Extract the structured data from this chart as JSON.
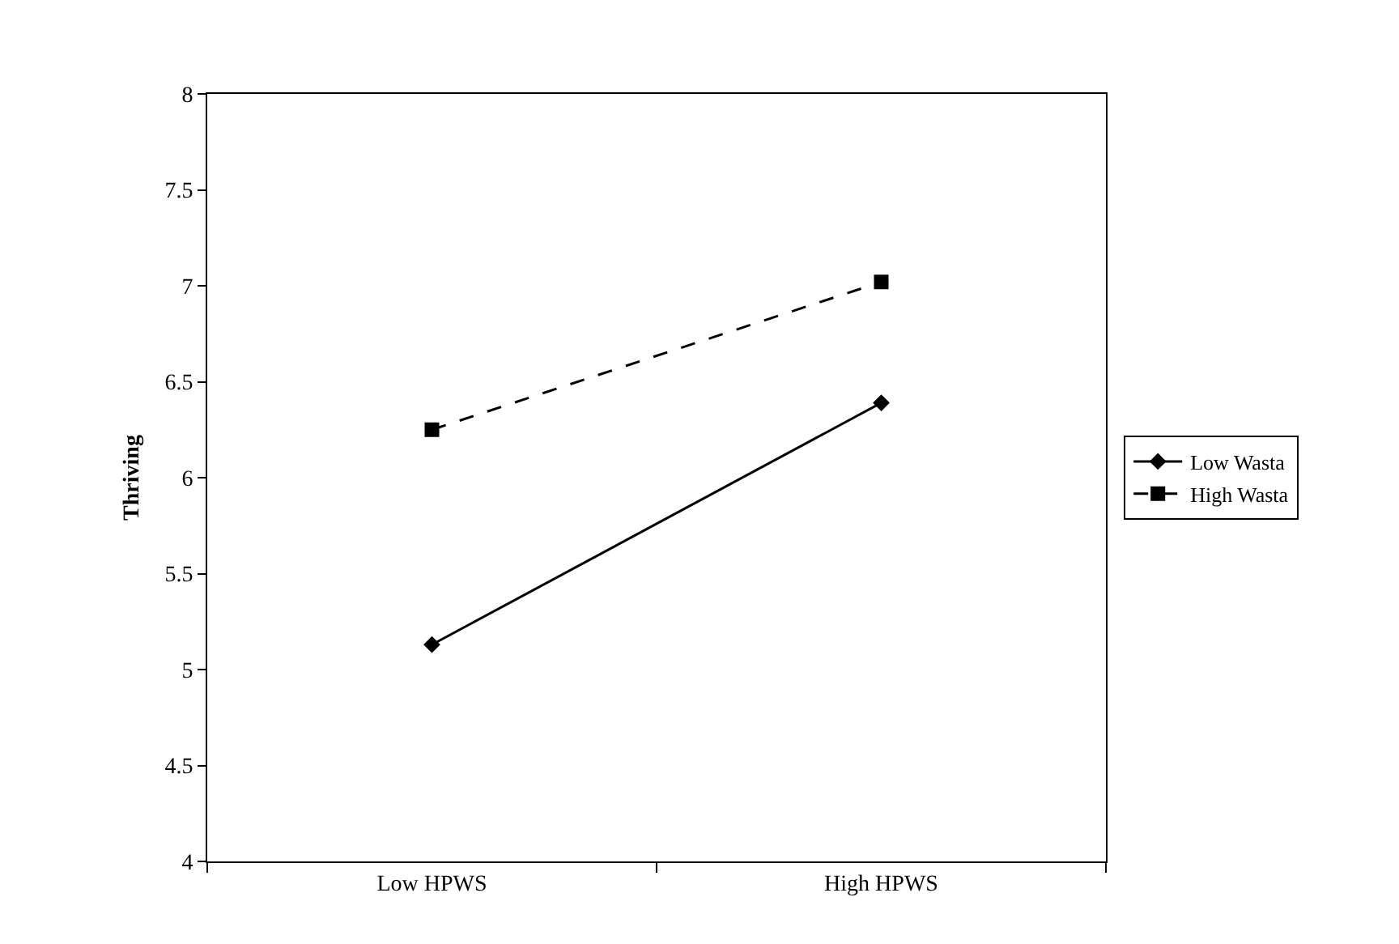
{
  "chart_data": {
    "type": "line",
    "ylabel": "Thriving",
    "categories": [
      "Low HPWS",
      "High HPWS"
    ],
    "series": [
      {
        "name": "Low Wasta",
        "color": "#000000",
        "values": [
          5.13,
          6.39
        ],
        "marker": "diamond",
        "line_style": "solid"
      },
      {
        "name": "High Wasta",
        "color": "#000000",
        "values": [
          6.25,
          7.02
        ],
        "marker": "square",
        "line_style": "dashed"
      }
    ],
    "ylim": [
      4,
      8
    ],
    "yticks": [
      4,
      4.5,
      5,
      5.5,
      6,
      6.5,
      7,
      7.5,
      8
    ],
    "grid": false,
    "legend": "right"
  }
}
